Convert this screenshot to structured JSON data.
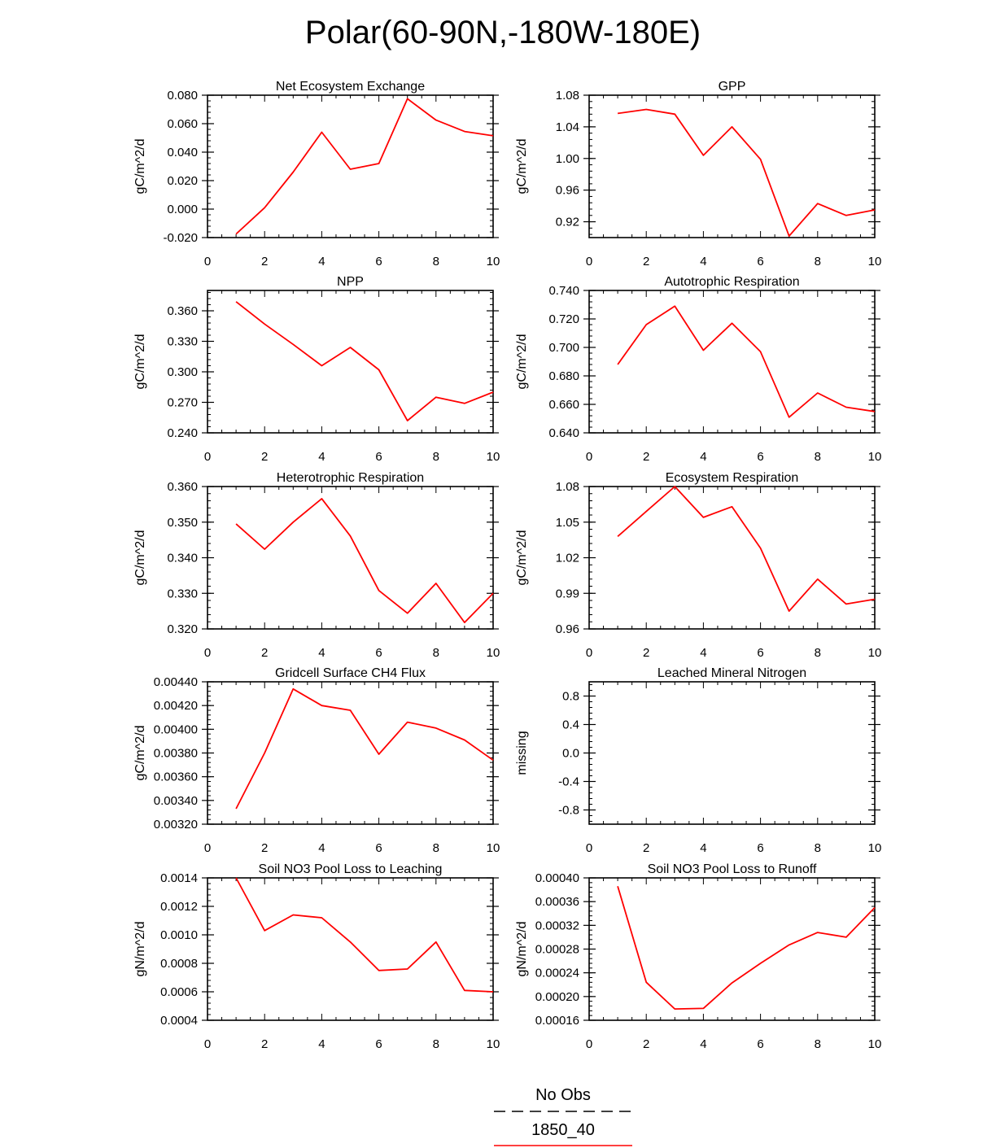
{
  "figure": {
    "title": "Polar(60-90N,-180W-180E)",
    "line_color": "#ff0000",
    "legend": {
      "entries": [
        {
          "label": "No Obs",
          "style": "dashed",
          "color": "#000000"
        },
        {
          "label": "1850_40",
          "style": "solid",
          "color": "#ff0000"
        }
      ]
    }
  },
  "chart_data": [
    {
      "type": "line",
      "title": "Net Ecosystem Exchange",
      "xlabel": "",
      "ylabel": "gC/m^2/d",
      "xlim": [
        0,
        10
      ],
      "ylim": [
        -0.02,
        0.08
      ],
      "xticks": [
        "0",
        "2",
        "4",
        "6",
        "8",
        "10"
      ],
      "yticks": [
        "-0.020",
        "0.000",
        "0.020",
        "0.040",
        "0.060",
        "0.080"
      ],
      "series": [
        {
          "name": "1850_40",
          "x": [
            1,
            2,
            3,
            4,
            5,
            6,
            7,
            8,
            9,
            10
          ],
          "values": [
            -0.0175,
            0.001,
            0.026,
            0.054,
            0.028,
            0.032,
            0.0775,
            0.0625,
            0.0545,
            0.0515
          ]
        }
      ]
    },
    {
      "type": "line",
      "title": "GPP",
      "xlabel": "",
      "ylabel": "gC/m^2/d",
      "xlim": [
        0,
        10
      ],
      "ylim": [
        0.9,
        1.08
      ],
      "xticks": [
        "0",
        "2",
        "4",
        "6",
        "8",
        "10"
      ],
      "yticks": [
        "0.92",
        "0.96",
        "1.00",
        "1.04",
        "1.08"
      ],
      "series": [
        {
          "name": "1850_40",
          "x": [
            1,
            2,
            3,
            4,
            5,
            6,
            7,
            8,
            9,
            10
          ],
          "values": [
            1.057,
            1.062,
            1.056,
            1.004,
            1.04,
            0.999,
            0.902,
            0.943,
            0.928,
            0.935
          ]
        }
      ]
    },
    {
      "type": "line",
      "title": "NPP",
      "xlabel": "",
      "ylabel": "gC/m^2/d",
      "xlim": [
        0,
        10
      ],
      "ylim": [
        0.24,
        0.38
      ],
      "xticks": [
        "0",
        "2",
        "4",
        "6",
        "8",
        "10"
      ],
      "yticks": [
        "0.240",
        "0.270",
        "0.300",
        "0.330",
        "0.360"
      ],
      "series": [
        {
          "name": "1850_40",
          "x": [
            1,
            2,
            3,
            4,
            5,
            6,
            7,
            8,
            9,
            10
          ],
          "values": [
            0.369,
            0.347,
            0.327,
            0.306,
            0.324,
            0.302,
            0.252,
            0.275,
            0.269,
            0.28
          ]
        }
      ]
    },
    {
      "type": "line",
      "title": "Autotrophic Respiration",
      "xlabel": "",
      "ylabel": "gC/m^2/d",
      "xlim": [
        0,
        10
      ],
      "ylim": [
        0.64,
        0.74
      ],
      "xticks": [
        "0",
        "2",
        "4",
        "6",
        "8",
        "10"
      ],
      "yticks": [
        "0.640",
        "0.660",
        "0.680",
        "0.700",
        "0.720",
        "0.740"
      ],
      "series": [
        {
          "name": "1850_40",
          "x": [
            1,
            2,
            3,
            4,
            5,
            6,
            7,
            8,
            9,
            10
          ],
          "values": [
            0.688,
            0.716,
            0.729,
            0.698,
            0.717,
            0.697,
            0.651,
            0.668,
            0.658,
            0.655
          ]
        }
      ]
    },
    {
      "type": "line",
      "title": "Heterotrophic Respiration",
      "xlabel": "",
      "ylabel": "gC/m^2/d",
      "xlim": [
        0,
        10
      ],
      "ylim": [
        0.32,
        0.36
      ],
      "xticks": [
        "0",
        "2",
        "4",
        "6",
        "8",
        "10"
      ],
      "yticks": [
        "0.320",
        "0.330",
        "0.340",
        "0.350",
        "0.360"
      ],
      "series": [
        {
          "name": "1850_40",
          "x": [
            1,
            2,
            3,
            4,
            5,
            6,
            7,
            8,
            9,
            10
          ],
          "values": [
            0.3495,
            0.3424,
            0.35,
            0.3566,
            0.3461,
            0.3308,
            0.3244,
            0.3328,
            0.3218,
            0.33
          ]
        }
      ]
    },
    {
      "type": "line",
      "title": "Ecosystem Respiration",
      "xlabel": "",
      "ylabel": "gC/m^2/d",
      "xlim": [
        0,
        10
      ],
      "ylim": [
        0.96,
        1.08
      ],
      "xticks": [
        "0",
        "2",
        "4",
        "6",
        "8",
        "10"
      ],
      "yticks": [
        "0.96",
        "0.99",
        "1.02",
        "1.05",
        "1.08"
      ],
      "series": [
        {
          "name": "1850_40",
          "x": [
            1,
            2,
            3,
            4,
            5,
            6,
            7,
            8,
            9,
            10
          ],
          "values": [
            1.038,
            1.059,
            1.08,
            1.054,
            1.063,
            1.028,
            0.975,
            1.002,
            0.981,
            0.985
          ]
        }
      ]
    },
    {
      "type": "line",
      "title": "Gridcell Surface CH4 Flux",
      "xlabel": "",
      "ylabel": "gC/m^2/d",
      "xlim": [
        0,
        10
      ],
      "ylim": [
        0.0032,
        0.0044
      ],
      "xticks": [
        "0",
        "2",
        "4",
        "6",
        "8",
        "10"
      ],
      "yticks": [
        "0.00320",
        "0.00340",
        "0.00360",
        "0.00380",
        "0.00400",
        "0.00420",
        "0.00440"
      ],
      "series": [
        {
          "name": "1850_40",
          "x": [
            1,
            2,
            3,
            4,
            5,
            6,
            7,
            8,
            9,
            10
          ],
          "values": [
            0.00333,
            0.0038,
            0.00434,
            0.0042,
            0.00416,
            0.00379,
            0.00406,
            0.00401,
            0.00391,
            0.00374
          ]
        }
      ]
    },
    {
      "type": "line",
      "title": "Leached Mineral Nitrogen",
      "xlabel": "",
      "ylabel": "missing",
      "xlim": [
        0,
        10
      ],
      "ylim": [
        -1.0,
        1.0
      ],
      "xticks": [
        "0",
        "2",
        "4",
        "6",
        "8",
        "10"
      ],
      "yticks": [
        "-0.8",
        "-0.4",
        "0.0",
        "0.4",
        "0.8"
      ],
      "series": []
    },
    {
      "type": "line",
      "title": "Soil NO3 Pool Loss to Leaching",
      "xlabel": "",
      "ylabel": "gN/m^2/d",
      "xlim": [
        0,
        10
      ],
      "ylim": [
        0.0004,
        0.0014
      ],
      "xticks": [
        "0",
        "2",
        "4",
        "6",
        "8",
        "10"
      ],
      "yticks": [
        "0.0004",
        "0.0006",
        "0.0008",
        "0.0010",
        "0.0012",
        "0.0014"
      ],
      "series": [
        {
          "name": "1850_40",
          "x": [
            1,
            2,
            3,
            4,
            5,
            6,
            7,
            8,
            9,
            10
          ],
          "values": [
            0.0014,
            0.00103,
            0.00114,
            0.00112,
            0.00095,
            0.00075,
            0.00076,
            0.00095,
            0.00061,
            0.0006
          ]
        }
      ]
    },
    {
      "type": "line",
      "title": "Soil NO3 Pool Loss to Runoff",
      "xlabel": "",
      "ylabel": "gN/m^2/d",
      "xlim": [
        0,
        10
      ],
      "ylim": [
        0.00016,
        0.0004
      ],
      "xticks": [
        "0",
        "2",
        "4",
        "6",
        "8",
        "10"
      ],
      "yticks": [
        "0.00016",
        "0.00020",
        "0.00024",
        "0.00028",
        "0.00032",
        "0.00036",
        "0.00040"
      ],
      "series": [
        {
          "name": "1850_40",
          "x": [
            1,
            2,
            3,
            4,
            5,
            6,
            7,
            8,
            9,
            10
          ],
          "values": [
            0.000386,
            0.000224,
            0.000179,
            0.00018,
            0.000223,
            0.000256,
            0.000287,
            0.000308,
            0.0003,
            0.00035
          ]
        }
      ]
    }
  ]
}
